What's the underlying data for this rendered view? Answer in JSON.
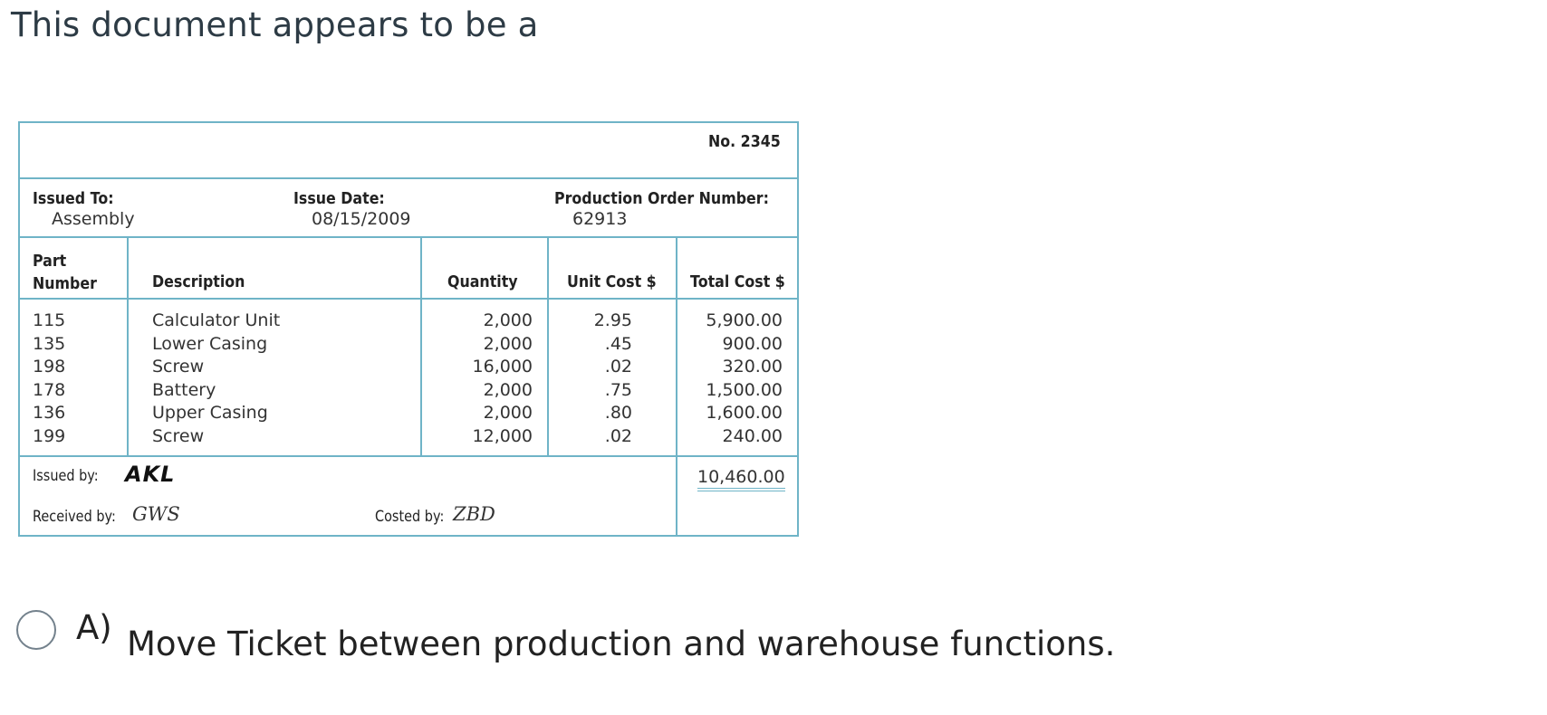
{
  "question": {
    "text": "This document appears to be a"
  },
  "document": {
    "number": "No. 2345",
    "issued_to_label": "Issued To:",
    "issued_to_value": "Assembly",
    "issue_date_label": "Issue Date:",
    "issue_date_value": "08/15/2009",
    "prod_order_label": "Production Order Number:",
    "prod_order_value": "62913",
    "headers": {
      "part_number_line1": "Part",
      "part_number_line2": "Number",
      "description": "Description",
      "quantity": "Quantity",
      "unit_cost": "Unit Cost $",
      "total_cost": "Total Cost $"
    },
    "rows": [
      {
        "part": "115",
        "description": "Calculator Unit",
        "quantity": "2,000",
        "unit_cost": "2.95",
        "total_cost": "5,900.00"
      },
      {
        "part": "135",
        "description": "Lower Casing",
        "quantity": "2,000",
        "unit_cost": ".45",
        "total_cost": "900.00"
      },
      {
        "part": "198",
        "description": "Screw",
        "quantity": "16,000",
        "unit_cost": ".02",
        "total_cost": "320.00"
      },
      {
        "part": "178",
        "description": "Battery",
        "quantity": "2,000",
        "unit_cost": ".75",
        "total_cost": "1,500.00"
      },
      {
        "part": "136",
        "description": "Upper Casing",
        "quantity": "2,000",
        "unit_cost": ".80",
        "total_cost": "1,600.00"
      },
      {
        "part": "199",
        "description": "Screw",
        "quantity": "12,000",
        "unit_cost": ".02",
        "total_cost": "240.00"
      }
    ],
    "issued_by_label": "Issued by:",
    "issued_by_value": "AKL",
    "grand_total": "10,460.00",
    "received_by_label": "Received by:",
    "received_by_value": "GWS",
    "costed_by_label": "Costed by:",
    "costed_by_value": "ZBD",
    "border_color": "#6fb4c7"
  },
  "answer": {
    "letter": "A)",
    "text": "Move Ticket between production and warehouse functions."
  }
}
